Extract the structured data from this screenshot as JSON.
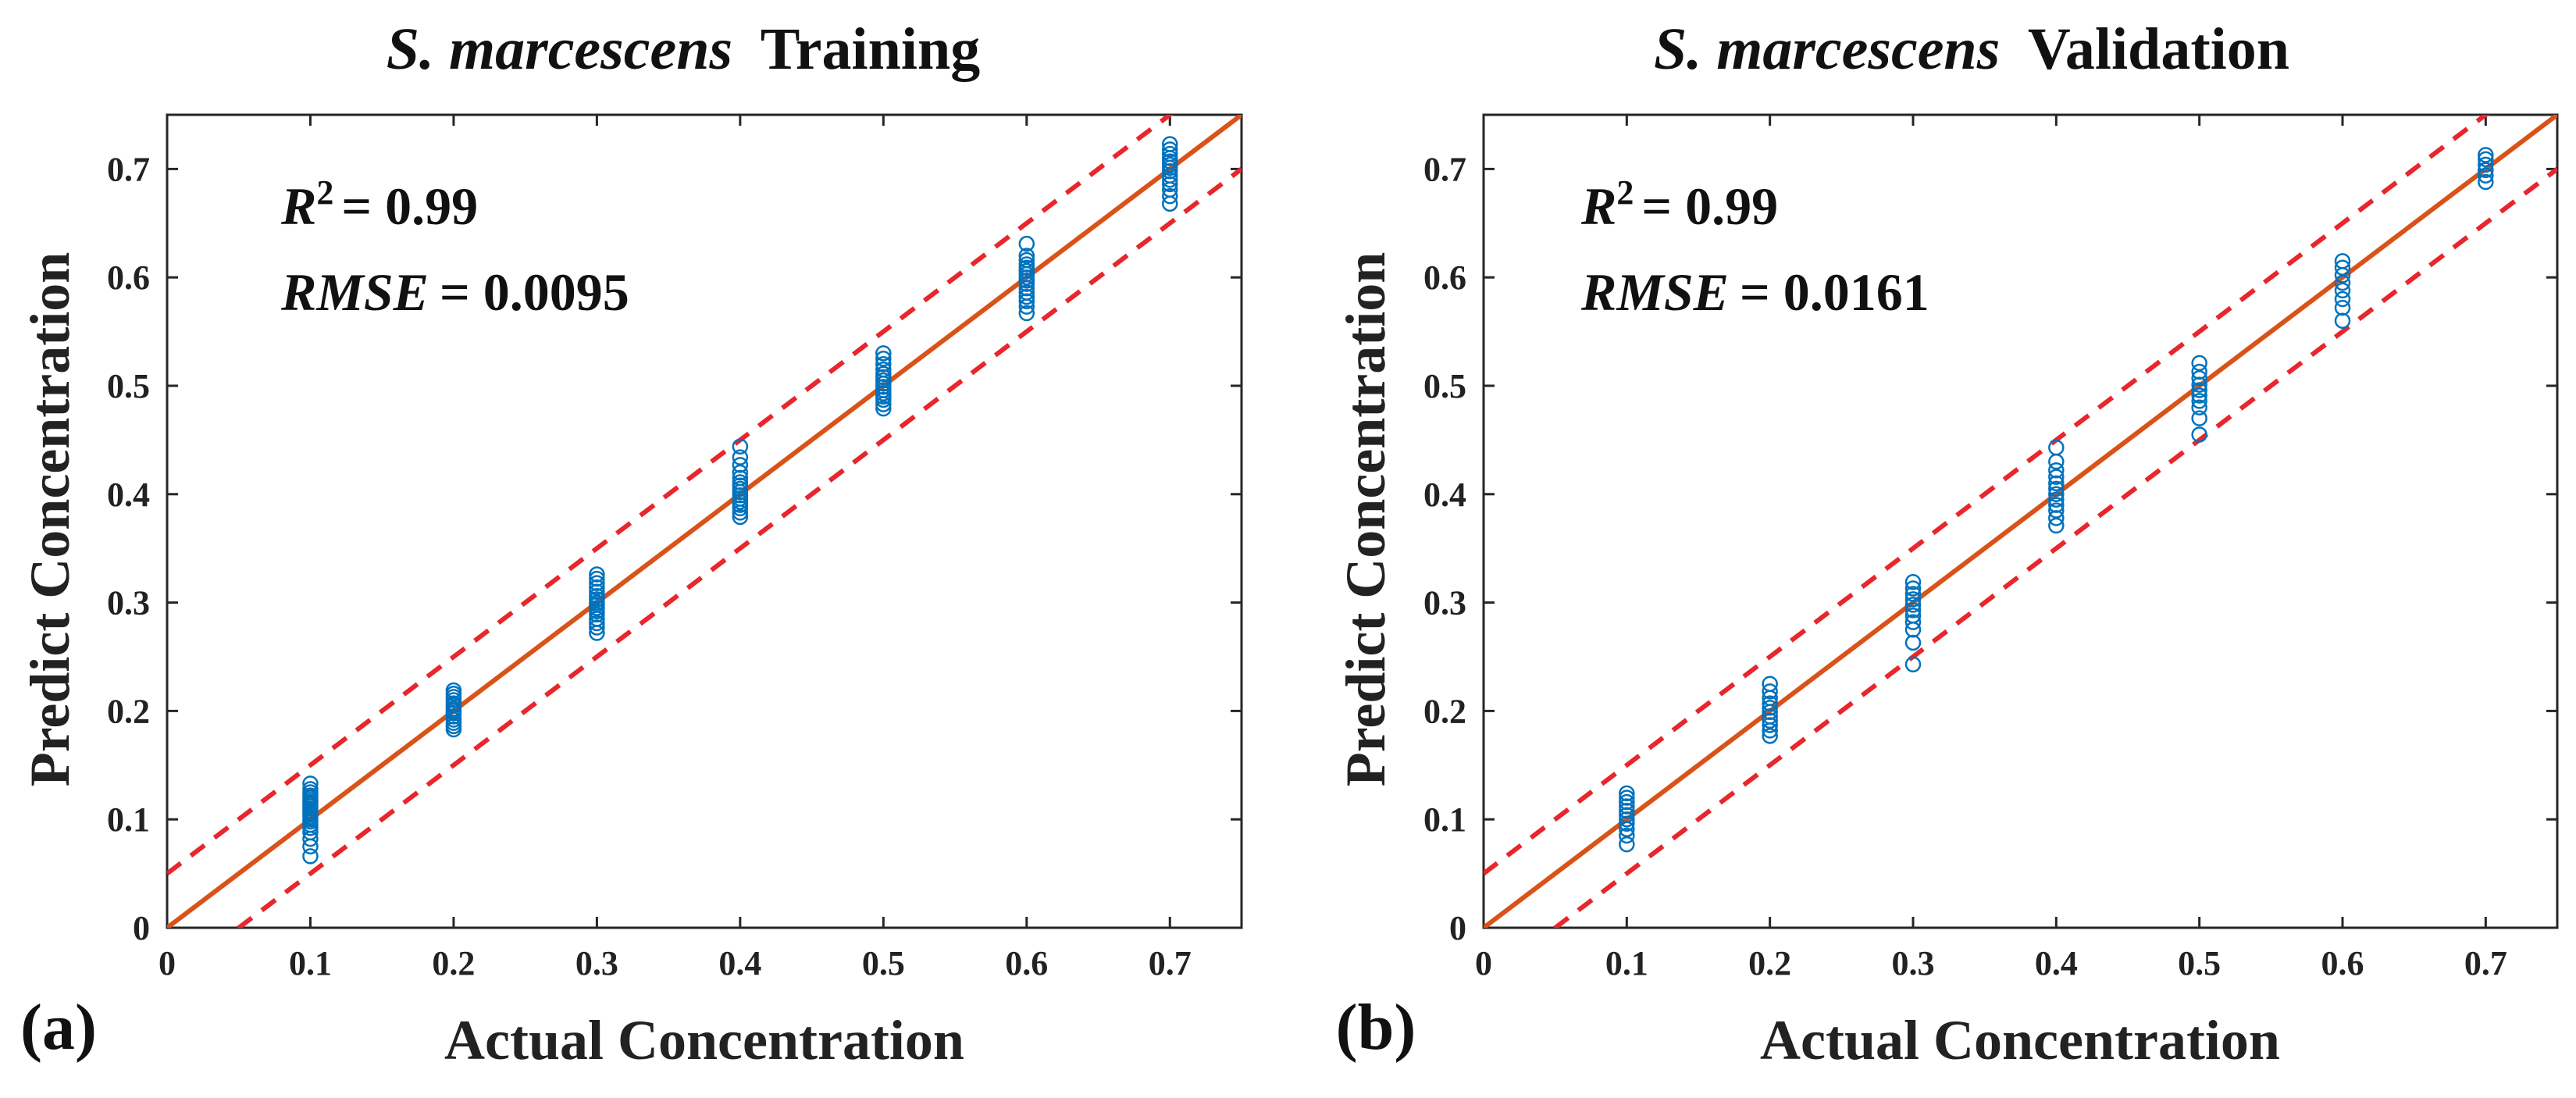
{
  "chart_data": [
    {
      "type": "scatter",
      "panel_label": "(a)",
      "title_italic": "S. marcescens",
      "title_rest": "Training",
      "xlabel": "Actual Concentration",
      "ylabel": "Predict Concentration",
      "xlim": [
        0,
        0.75
      ],
      "ylim": [
        0,
        0.75
      ],
      "xticks": [
        "0",
        "0.1",
        "0.2",
        "0.3",
        "0.4",
        "0.5",
        "0.6",
        "0.7"
      ],
      "yticks": [
        "0",
        "0.1",
        "0.2",
        "0.3",
        "0.4",
        "0.5",
        "0.6",
        "0.7"
      ],
      "grid": false,
      "r2_label": "R",
      "r2_sup": "2",
      "r2_value": "= 0.99",
      "rmse_label": "RMSE",
      "rmse_value": "= 0.0095",
      "identity_line": {
        "slope": 1,
        "intercept": 0,
        "color": "#D95319"
      },
      "bound_lines": [
        {
          "slope": 1,
          "intercept": 0.05,
          "color": "#E8262B"
        },
        {
          "slope": 1,
          "intercept": -0.05,
          "color": "#E8262B"
        }
      ],
      "marker_color": "#0072BD",
      "points": [
        {
          "x": 0.1,
          "y": [
            0.066,
            0.075,
            0.082,
            0.088,
            0.092,
            0.095,
            0.098,
            0.1,
            0.102,
            0.104,
            0.106,
            0.108,
            0.11,
            0.112,
            0.114,
            0.116,
            0.118,
            0.12,
            0.122,
            0.125,
            0.128,
            0.133
          ]
        },
        {
          "x": 0.2,
          "y": [
            0.183,
            0.186,
            0.189,
            0.192,
            0.195,
            0.198,
            0.2,
            0.202,
            0.205,
            0.207,
            0.21,
            0.213,
            0.216,
            0.219
          ]
        },
        {
          "x": 0.3,
          "y": [
            0.272,
            0.277,
            0.281,
            0.285,
            0.289,
            0.292,
            0.295,
            0.298,
            0.3,
            0.303,
            0.306,
            0.31,
            0.314,
            0.318,
            0.322,
            0.326
          ]
        },
        {
          "x": 0.4,
          "y": [
            0.379,
            0.383,
            0.387,
            0.39,
            0.393,
            0.396,
            0.399,
            0.402,
            0.405,
            0.408,
            0.411,
            0.415,
            0.42,
            0.427,
            0.434,
            0.444
          ]
        },
        {
          "x": 0.5,
          "y": [
            0.479,
            0.483,
            0.487,
            0.49,
            0.493,
            0.496,
            0.499,
            0.502,
            0.505,
            0.508,
            0.511,
            0.515,
            0.52,
            0.525,
            0.53
          ]
        },
        {
          "x": 0.6,
          "y": [
            0.567,
            0.573,
            0.578,
            0.582,
            0.586,
            0.59,
            0.594,
            0.597,
            0.6,
            0.603,
            0.606,
            0.609,
            0.612,
            0.616,
            0.62,
            0.631
          ]
        },
        {
          "x": 0.7,
          "y": [
            0.668,
            0.675,
            0.681,
            0.686,
            0.69,
            0.694,
            0.698,
            0.701,
            0.704,
            0.707,
            0.71,
            0.714,
            0.718,
            0.723
          ]
        }
      ]
    },
    {
      "type": "scatter",
      "panel_label": "(b)",
      "title_italic": "S. marcescens",
      "title_rest": "Validation",
      "xlabel": "Actual Concentration",
      "ylabel": "Predict Concentration",
      "xlim": [
        0,
        0.75
      ],
      "ylim": [
        0,
        0.75
      ],
      "xticks": [
        "0",
        "0.1",
        "0.2",
        "0.3",
        "0.4",
        "0.5",
        "0.6",
        "0.7"
      ],
      "yticks": [
        "0",
        "0.1",
        "0.2",
        "0.3",
        "0.4",
        "0.5",
        "0.6",
        "0.7"
      ],
      "grid": false,
      "r2_label": "R",
      "r2_sup": "2",
      "r2_value": "= 0.99",
      "rmse_label": "RMSE",
      "rmse_value": "= 0.0161",
      "identity_line": {
        "slope": 1,
        "intercept": 0,
        "color": "#D95319"
      },
      "bound_lines": [
        {
          "slope": 1,
          "intercept": 0.05,
          "color": "#E8262B"
        },
        {
          "slope": 1,
          "intercept": -0.05,
          "color": "#E8262B"
        }
      ],
      "marker_color": "#0072BD",
      "points": [
        {
          "x": 0.1,
          "y": [
            0.077,
            0.085,
            0.091,
            0.096,
            0.1,
            0.104,
            0.108,
            0.112,
            0.116,
            0.12,
            0.124
          ]
        },
        {
          "x": 0.2,
          "y": [
            0.177,
            0.182,
            0.187,
            0.191,
            0.195,
            0.199,
            0.203,
            0.207,
            0.212,
            0.218,
            0.225
          ]
        },
        {
          "x": 0.3,
          "y": [
            0.243,
            0.263,
            0.275,
            0.282,
            0.288,
            0.293,
            0.298,
            0.303,
            0.308,
            0.313,
            0.319
          ]
        },
        {
          "x": 0.4,
          "y": [
            0.371,
            0.378,
            0.385,
            0.39,
            0.395,
            0.4,
            0.405,
            0.41,
            0.416,
            0.422,
            0.43,
            0.443
          ]
        },
        {
          "x": 0.5,
          "y": [
            0.455,
            0.47,
            0.48,
            0.486,
            0.491,
            0.496,
            0.501,
            0.507,
            0.513,
            0.521
          ]
        },
        {
          "x": 0.6,
          "y": [
            0.56,
            0.572,
            0.58,
            0.588,
            0.595,
            0.602,
            0.609,
            0.615
          ]
        },
        {
          "x": 0.7,
          "y": [
            0.688,
            0.694,
            0.699,
            0.704,
            0.709,
            0.713
          ]
        }
      ]
    }
  ]
}
